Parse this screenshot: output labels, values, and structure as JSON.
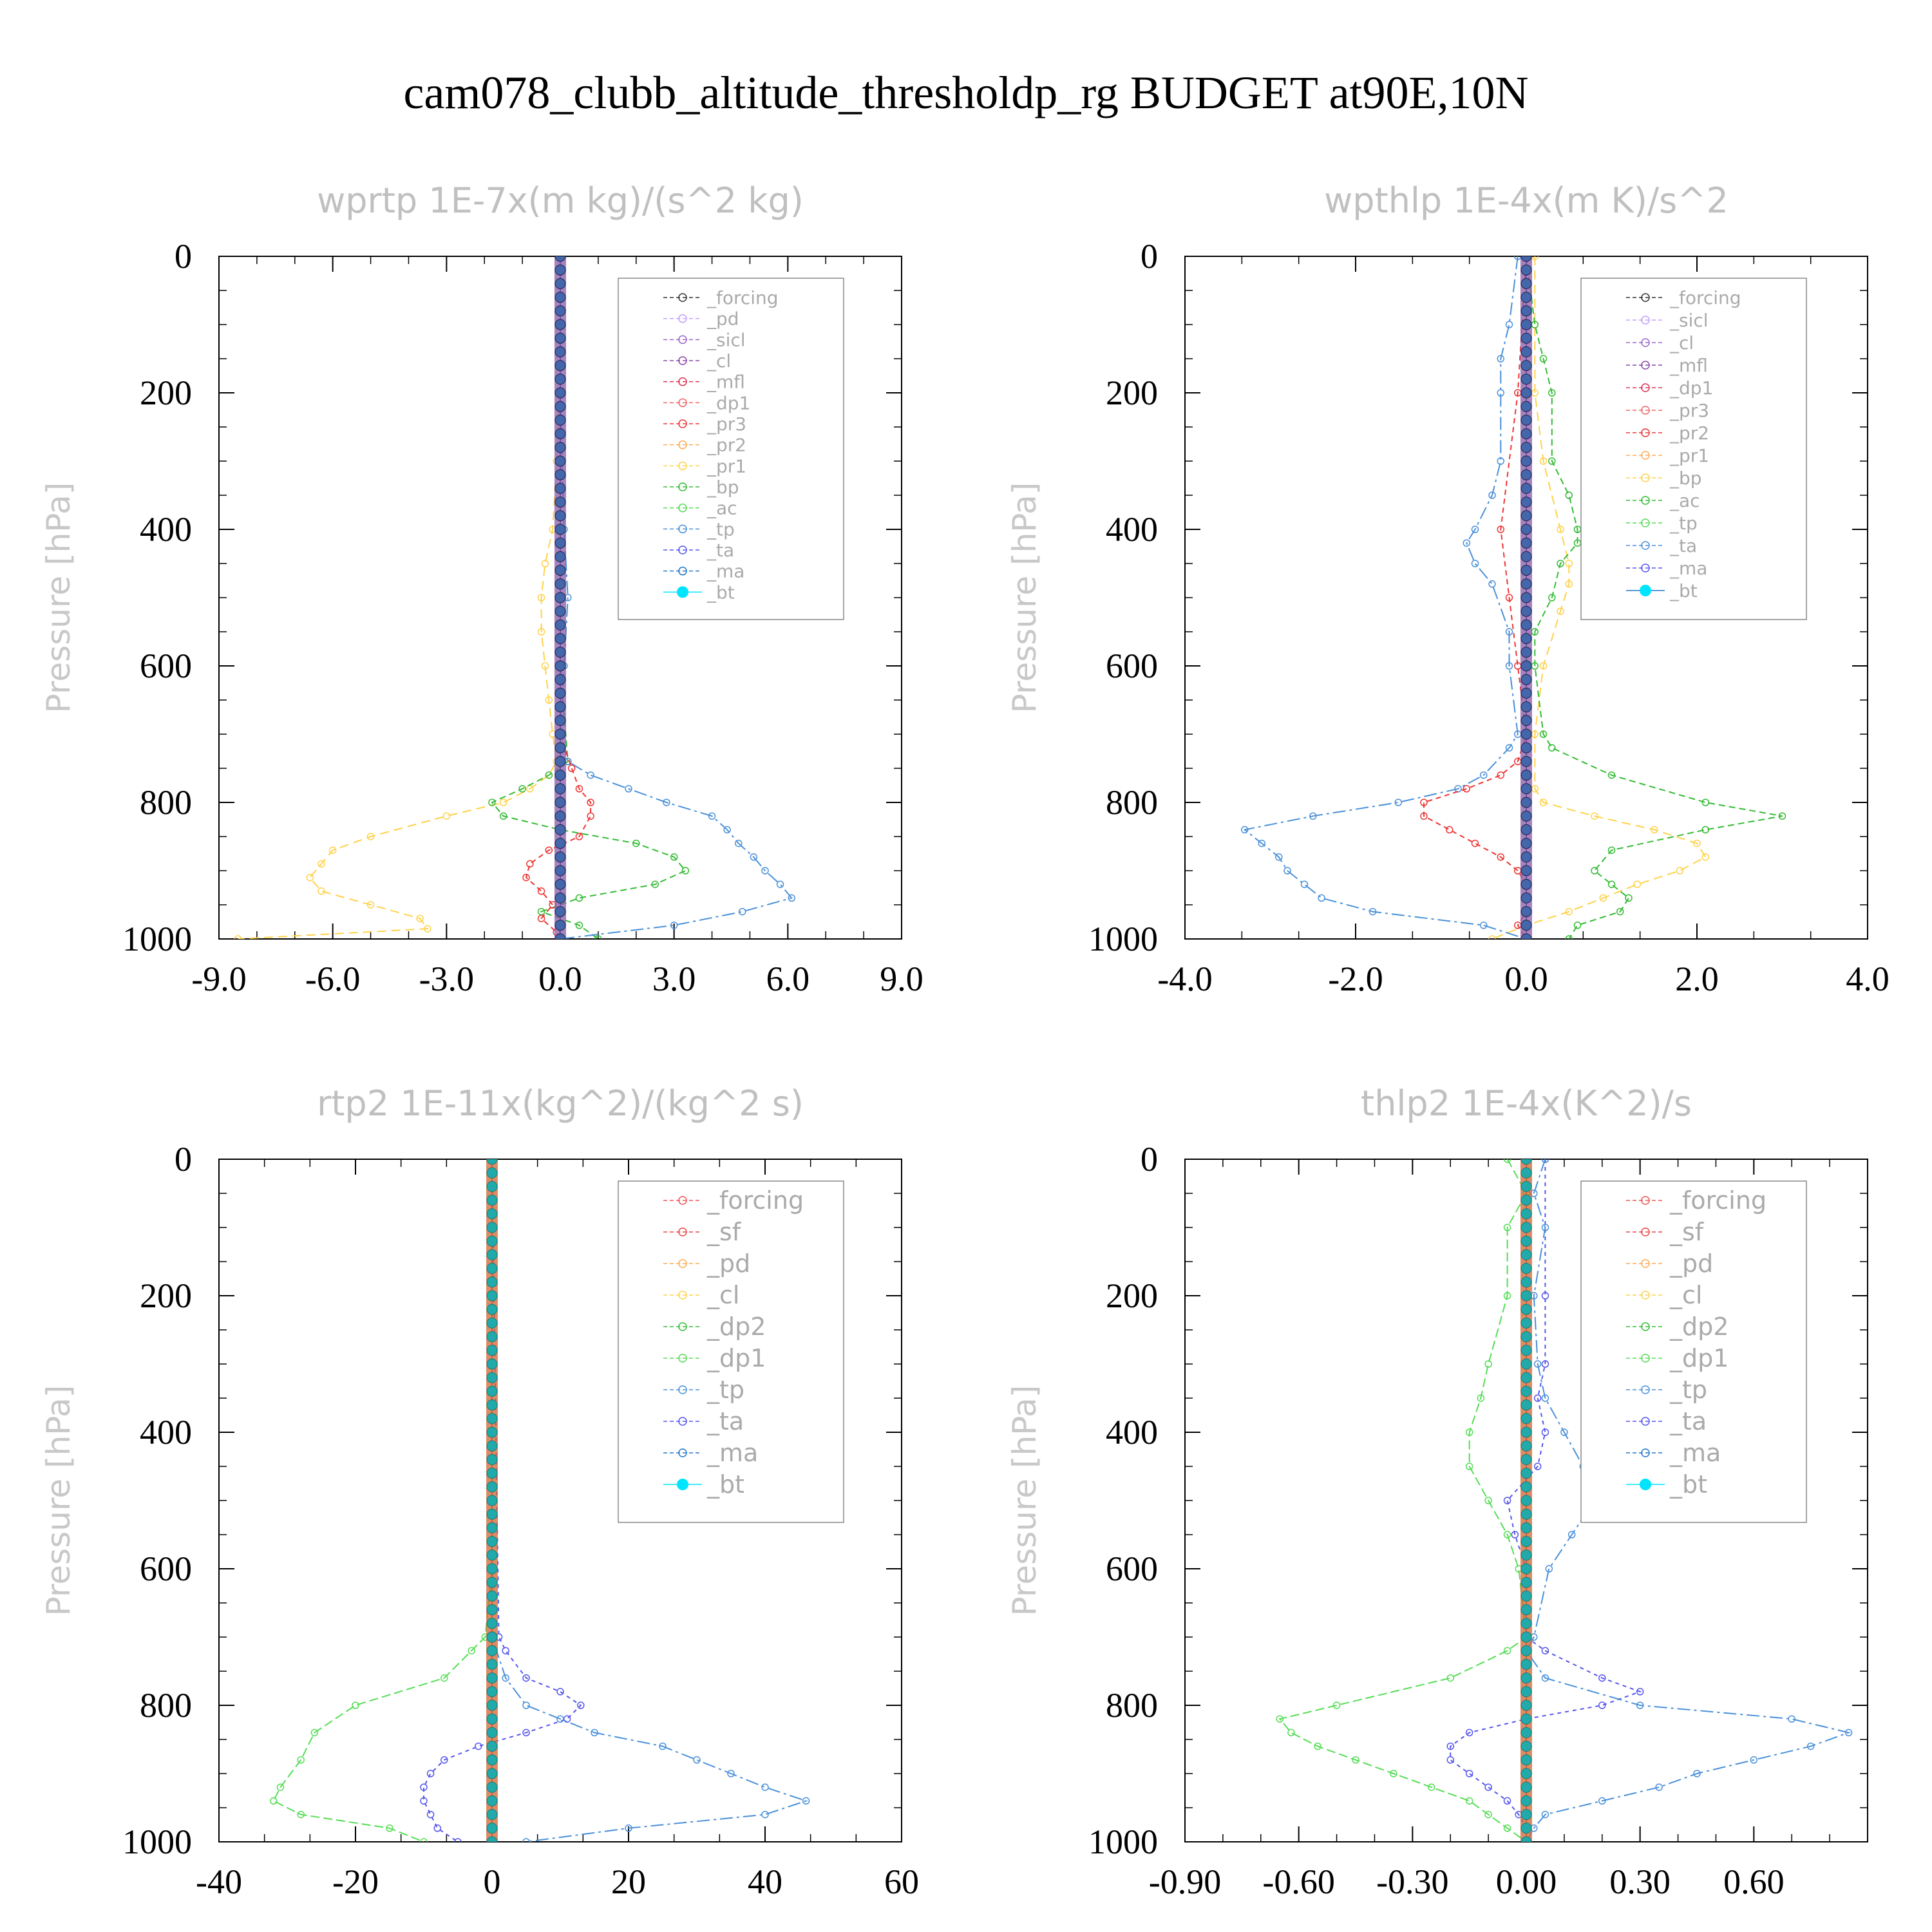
{
  "title": "cam078_clubb_altitude_thresholdp_rg  BUDGET at90E,10N",
  "chart_data": [
    {
      "type": "line",
      "title": "wprtp  1E-7x(m kg)/(s^2 kg)",
      "ylabel": "Pressure [hPa]",
      "xlim": [
        -9,
        9
      ],
      "ylim": [
        1000,
        0
      ],
      "xticks": [
        "-9.0",
        "-6.0",
        "-3.0",
        "0.0",
        "3.0",
        "6.0",
        "9.0"
      ],
      "yticks": [
        "0",
        "200",
        "400",
        "600",
        "800",
        "1000"
      ],
      "legend": [
        "_forcing",
        "_pd",
        "_sicl",
        "_cl",
        "_mfl",
        "_dp1",
        "_pr3",
        "_pr2",
        "_pr1",
        "_bp",
        "_ac",
        "_tp",
        "_ta",
        "_ma",
        "_bt"
      ],
      "series": [
        {
          "name": "_pr1",
          "color": "#ffd24a",
          "dash": "14,8",
          "y": [
            0,
            100,
            200,
            300,
            400,
            450,
            500,
            550,
            600,
            650,
            700,
            740,
            760,
            780,
            800,
            820,
            850,
            870,
            890,
            910,
            930,
            950,
            970,
            985,
            1000
          ],
          "x": [
            0,
            0,
            0,
            -0.1,
            -0.2,
            -0.4,
            -0.5,
            -0.5,
            -0.4,
            -0.3,
            -0.2,
            -0.1,
            -0.3,
            -0.8,
            -1.5,
            -3,
            -5,
            -6,
            -6.3,
            -6.6,
            -6.3,
            -5,
            -3.7,
            -3.5,
            -8.5
          ]
        },
        {
          "name": "_bp",
          "color": "#33bb33",
          "dash": "10,6",
          "y": [
            0,
            200,
            400,
            600,
            740,
            760,
            780,
            800,
            820,
            840,
            860,
            880,
            900,
            920,
            940,
            960,
            980,
            1000
          ],
          "x": [
            0,
            0,
            0,
            0,
            0.2,
            -0.3,
            -1,
            -1.8,
            -1.5,
            0,
            2,
            3,
            3.3,
            2.5,
            0.5,
            -0.5,
            0.5,
            1
          ]
        },
        {
          "name": "_tp",
          "color": "#4a90d9",
          "dash": "20,6,4,6",
          "y": [
            0,
            200,
            400,
            500,
            600,
            700,
            740,
            760,
            780,
            800,
            820,
            840,
            860,
            880,
            900,
            920,
            940,
            960,
            980,
            1000
          ],
          "x": [
            0,
            0,
            0.1,
            0.2,
            0.1,
            0,
            0.2,
            0.8,
            1.8,
            2.8,
            4,
            4.4,
            4.7,
            5.1,
            5.4,
            5.8,
            6.1,
            4.8,
            3,
            0
          ]
        },
        {
          "name": "_pr3",
          "color": "#ee3333",
          "dash": "8,6",
          "y": [
            0,
            700,
            750,
            780,
            800,
            820,
            850,
            870,
            890,
            910,
            930,
            950,
            970,
            990,
            1000
          ],
          "x": [
            0,
            0,
            0.3,
            0.5,
            0.8,
            0.8,
            0.5,
            -0.3,
            -0.8,
            -0.9,
            -0.5,
            -0.2,
            -0.5,
            -0.1,
            0
          ]
        },
        {
          "name": "_forcing",
          "color": "#3c3c8c",
          "dash": "",
          "y": [
            0,
            1000
          ],
          "x": [
            0,
            0
          ]
        }
      ]
    },
    {
      "type": "line",
      "title": "wpthlp  1E-4x(m K)/s^2",
      "ylabel": "Pressure [hPa]",
      "xlim": [
        -4,
        4
      ],
      "ylim": [
        1000,
        0
      ],
      "xticks": [
        "-4.0",
        "-2.0",
        "0.0",
        "2.0",
        "4.0"
      ],
      "yticks": [
        "0",
        "200",
        "400",
        "600",
        "800",
        "1000"
      ],
      "legend": [
        "_forcing",
        "_sicl",
        "_cl",
        "_mfl",
        "_dp1",
        "_pr3",
        "_pr2",
        "_pr1",
        "_bp",
        "_ac",
        "_tp",
        "_ta",
        "_ma",
        "_bt"
      ],
      "series": [
        {
          "name": "_pr1",
          "color": "#ffd24a",
          "dash": "14,8",
          "y": [
            0,
            100,
            200,
            300,
            400,
            450,
            480,
            520,
            600,
            700,
            780,
            800,
            820,
            840,
            860,
            880,
            900,
            920,
            940,
            960,
            980,
            1000
          ],
          "x": [
            0.1,
            0.1,
            0.1,
            0.2,
            0.4,
            0.5,
            0.5,
            0.4,
            0.2,
            0.1,
            0.1,
            0.2,
            0.8,
            1.5,
            2,
            2.1,
            1.8,
            1.3,
            0.9,
            0.5,
            0,
            -0.4
          ]
        },
        {
          "name": "_bp",
          "color": "#33bb33",
          "dash": "10,6",
          "y": [
            0,
            100,
            150,
            200,
            300,
            350,
            400,
            420,
            450,
            500,
            550,
            600,
            700,
            720,
            760,
            800,
            820,
            840,
            870,
            900,
            920,
            940,
            960,
            980,
            1000
          ],
          "x": [
            0,
            0.1,
            0.2,
            0.3,
            0.3,
            0.5,
            0.6,
            0.6,
            0.4,
            0.3,
            0.1,
            0.1,
            0.2,
            0.3,
            1,
            2.1,
            3,
            2.1,
            1,
            0.8,
            1,
            1.2,
            1.1,
            0.6,
            0.5
          ]
        },
        {
          "name": "_tp",
          "color": "#4a90d9",
          "dash": "20,6,4,6",
          "y": [
            0,
            100,
            150,
            200,
            300,
            350,
            400,
            420,
            450,
            480,
            550,
            600,
            700,
            720,
            760,
            780,
            800,
            820,
            840,
            860,
            880,
            900,
            920,
            940,
            960,
            980,
            1000
          ],
          "x": [
            -0.1,
            -0.2,
            -0.3,
            -0.3,
            -0.3,
            -0.4,
            -0.6,
            -0.7,
            -0.6,
            -0.4,
            -0.2,
            -0.2,
            -0.1,
            -0.2,
            -0.5,
            -0.8,
            -1.5,
            -2.5,
            -3.3,
            -3.1,
            -2.9,
            -2.8,
            -2.6,
            -2.4,
            -1.8,
            -0.5,
            0
          ]
        },
        {
          "name": "_pr3",
          "color": "#ee3333",
          "dash": "8,6",
          "y": [
            0,
            200,
            400,
            500,
            600,
            700,
            740,
            760,
            780,
            800,
            820,
            840,
            860,
            880,
            900,
            920,
            940,
            960,
            980,
            1000
          ],
          "x": [
            0,
            -0.1,
            -0.3,
            -0.2,
            -0.1,
            0,
            -0.1,
            -0.3,
            -0.7,
            -1.2,
            -1.2,
            -0.9,
            -0.6,
            -0.3,
            -0.1,
            0,
            0,
            0,
            -0.1,
            0
          ]
        },
        {
          "name": "_forcing",
          "color": "#3c3c8c",
          "dash": "",
          "y": [
            0,
            1000
          ],
          "x": [
            0,
            0
          ]
        }
      ]
    },
    {
      "type": "line",
      "title": "rtp2  1E-11x(kg^2)/(kg^2 s)",
      "ylabel": "Pressure [hPa]",
      "xlim": [
        -40,
        60
      ],
      "ylim": [
        1000,
        0
      ],
      "xticks": [
        "-40",
        "-20",
        "0",
        "20",
        "40",
        "60"
      ],
      "yticks": [
        "0",
        "200",
        "400",
        "600",
        "800",
        "1000"
      ],
      "legend": [
        "_forcing",
        "_sf",
        "_pd",
        "_cl",
        "_dp2",
        "_dp1",
        "_tp",
        "_ta",
        "_ma",
        "_bt"
      ],
      "series": [
        {
          "name": "_dp1",
          "color": "#55dd55",
          "dash": "14,6",
          "y": [
            0,
            600,
            700,
            720,
            760,
            800,
            840,
            880,
            920,
            940,
            960,
            980,
            1000
          ],
          "x": [
            0,
            0,
            -1,
            -3,
            -7,
            -20,
            -26,
            -28,
            -31,
            -32,
            -28,
            -15,
            -10
          ]
        },
        {
          "name": "_ta",
          "color": "#5555ee",
          "dash": "6,6",
          "y": [
            0,
            700,
            720,
            760,
            780,
            800,
            820,
            840,
            860,
            880,
            900,
            920,
            940,
            960,
            980,
            1000
          ],
          "x": [
            0,
            1,
            2,
            5,
            10,
            13,
            11,
            5,
            -2,
            -7,
            -9,
            -10,
            -10,
            -9,
            -8,
            -5
          ]
        },
        {
          "name": "_tp",
          "color": "#4a90d9",
          "dash": "20,6,4,6",
          "y": [
            0,
            700,
            760,
            800,
            820,
            840,
            860,
            880,
            900,
            920,
            940,
            960,
            980,
            1000
          ],
          "x": [
            0,
            0,
            2,
            5,
            10,
            15,
            25,
            30,
            35,
            40,
            46,
            40,
            20,
            5
          ]
        },
        {
          "name": "_forcing",
          "color": "#dd5522",
          "dash": "",
          "y": [
            0,
            1000
          ],
          "x": [
            0,
            0
          ]
        }
      ]
    },
    {
      "type": "line",
      "title": "thlp2  1E-4x(K^2)/s",
      "ylabel": "Pressure [hPa]",
      "xlim": [
        -0.9,
        0.9
      ],
      "ylim": [
        1000,
        0
      ],
      "xticks": [
        "-0.90",
        "-0.60",
        "-0.30",
        "0.00",
        "0.30",
        "0.60"
      ],
      "yticks": [
        "0",
        "200",
        "400",
        "600",
        "800",
        "1000"
      ],
      "legend": [
        "_forcing",
        "_sf",
        "_pd",
        "_cl",
        "_dp2",
        "_dp1",
        "_tp",
        "_ta",
        "_ma",
        "_bt"
      ],
      "series": [
        {
          "name": "_dp1",
          "color": "#55dd55",
          "dash": "14,6",
          "y": [
            0,
            50,
            100,
            200,
            300,
            350,
            400,
            450,
            500,
            550,
            600,
            700,
            720,
            760,
            800,
            820,
            840,
            860,
            880,
            900,
            920,
            940,
            960,
            980,
            1000
          ],
          "x": [
            -0.05,
            0,
            -0.05,
            -0.05,
            -0.1,
            -0.12,
            -0.15,
            -0.15,
            -0.1,
            -0.05,
            -0.02,
            0,
            -0.05,
            -0.2,
            -0.5,
            -0.65,
            -0.62,
            -0.55,
            -0.45,
            -0.35,
            -0.25,
            -0.15,
            -0.1,
            -0.05,
            0
          ]
        },
        {
          "name": "_ta",
          "color": "#5555ee",
          "dash": "6,6",
          "y": [
            0,
            200,
            300,
            350,
            400,
            450,
            500,
            550,
            600,
            700,
            720,
            760,
            780,
            800,
            820,
            840,
            860,
            880,
            900,
            920,
            940,
            960,
            980,
            1000
          ],
          "x": [
            0.05,
            0.05,
            0.05,
            0.03,
            0.05,
            0.03,
            -0.05,
            -0.03,
            0,
            0,
            0.05,
            0.2,
            0.3,
            0.2,
            0,
            -0.15,
            -0.2,
            -0.2,
            -0.15,
            -0.1,
            -0.05,
            -0.02,
            0,
            0
          ]
        },
        {
          "name": "_tp",
          "color": "#4a90d9",
          "dash": "20,6,4,6",
          "y": [
            0,
            50,
            100,
            200,
            300,
            350,
            400,
            450,
            500,
            550,
            600,
            700,
            720,
            760,
            800,
            820,
            840,
            860,
            880,
            900,
            920,
            940,
            960,
            980,
            1000
          ],
          "x": [
            0.05,
            0.02,
            0.05,
            0.02,
            0.03,
            0.05,
            0.1,
            0.15,
            0.18,
            0.12,
            0.06,
            0.02,
            0,
            0.05,
            0.3,
            0.7,
            0.85,
            0.75,
            0.6,
            0.45,
            0.35,
            0.2,
            0.05,
            0.02,
            0
          ]
        },
        {
          "name": "_forcing",
          "color": "#dd5522",
          "dash": "",
          "y": [
            0,
            1000
          ],
          "x": [
            0,
            0
          ]
        }
      ]
    }
  ]
}
